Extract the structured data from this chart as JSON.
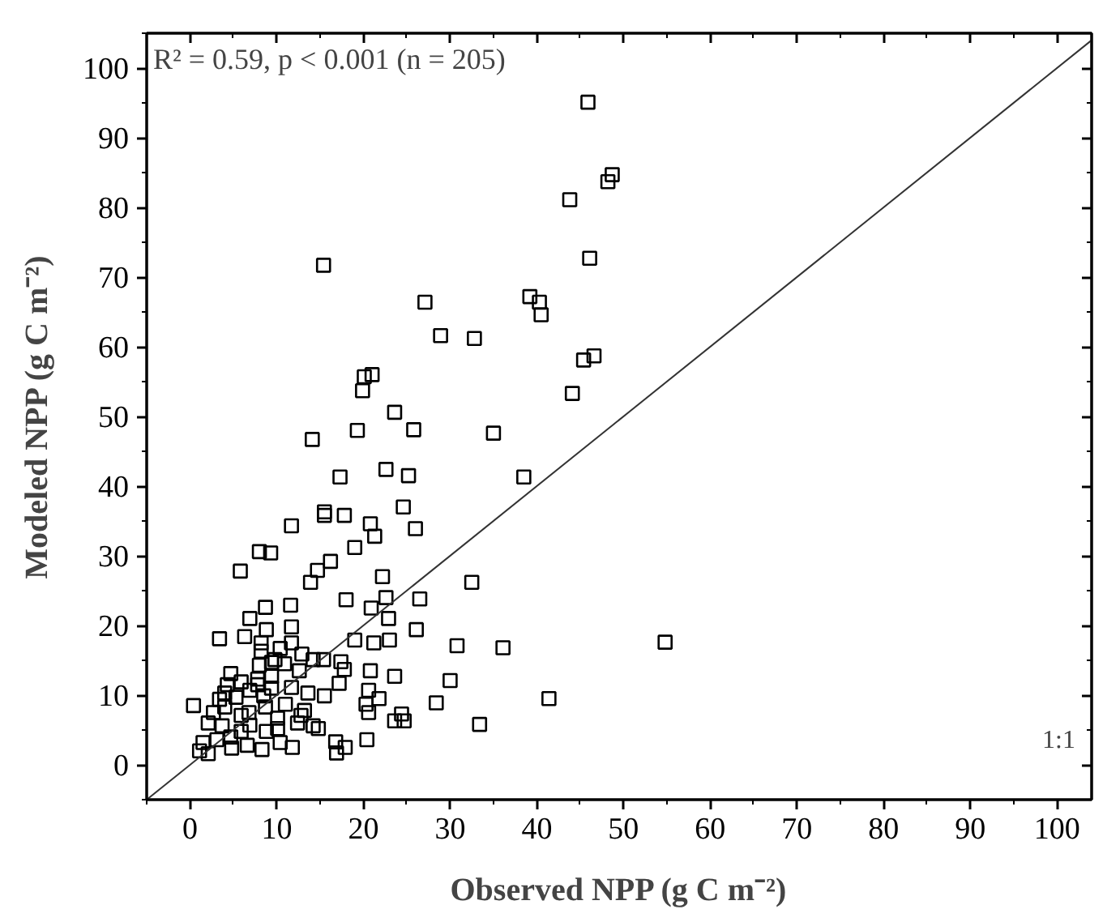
{
  "chart_data": {
    "type": "scatter",
    "xlabel": "Observed NPP (g C m⁻²)",
    "ylabel": "Modeled NPP (g C m⁻²)",
    "xlim": [
      -5,
      104
    ],
    "ylim": [
      -5,
      105
    ],
    "xticks": [
      0,
      10,
      20,
      30,
      40,
      50,
      60,
      70,
      80,
      90,
      100
    ],
    "yticks": [
      0,
      10,
      20,
      30,
      40,
      50,
      60,
      70,
      80,
      90,
      100
    ],
    "grid": false,
    "annotations": [
      "R² = 0.59, p < 0.001 (n = 205)",
      "1:1"
    ],
    "series": [
      {
        "color": "#000000",
        "marker": "square",
        "x": [
          45.9,
          48.7,
          48.2,
          43.8,
          46.1,
          15.4,
          27.1,
          39.2,
          40.3,
          40.5,
          28.9,
          32.8,
          46.6,
          45.4,
          44.1,
          21.0,
          20.1,
          19.9,
          23.6,
          19.3,
          25.8,
          14.1,
          35.0,
          22.6,
          25.2,
          17.3,
          38.5,
          24.6,
          15.5,
          15.5,
          17.8,
          20.8,
          21.3,
          26.0,
          11.7,
          19.0,
          8.0,
          9.3,
          16.2,
          5.8,
          14.7,
          13.9,
          22.2,
          32.5,
          18.0,
          26.5,
          22.6,
          20.9,
          22.9,
          11.6,
          8.7,
          6.9,
          11.7,
          8.8,
          26.1,
          3.4,
          6.3,
          19.0,
          21.2,
          23.0,
          30.8,
          36.1,
          11.7,
          10.4,
          14.2,
          12.9,
          17.4,
          17.8,
          20.8,
          23.6,
          30.0,
          4.7,
          8.0,
          9.4,
          10.9,
          12.6,
          7.8,
          5.3,
          4.0,
          6.9,
          9.4,
          11.7,
          15.5,
          17.2,
          20.6,
          0.4,
          3.4,
          28.4,
          41.4,
          20.3,
          20.6,
          21.8,
          23.6,
          24.7,
          24.4,
          33.4,
          10.1,
          12.4,
          14.2,
          13.2,
          6.8,
          8.7,
          2.7,
          2.1,
          3.7,
          20.4,
          16.8,
          16.9,
          17.9,
          1.5,
          1.1,
          2.1,
          3.1,
          4.7,
          6.6,
          8.3,
          10.4,
          11.8,
          8.8,
          5.9,
          4.8,
          6.9,
          10.1,
          14.8,
          12.8,
          9.4,
          8.2,
          8.2,
          9.8,
          15.4,
          5.9,
          4.0,
          4.3,
          11.0,
          13.6,
          8.5,
          5.9,
          7.8,
          54.8
        ],
        "values": [
          95.1,
          84.7,
          83.7,
          81.1,
          72.7,
          71.7,
          66.4,
          67.2,
          66.4,
          64.6,
          61.6,
          61.2,
          58.7,
          58.1,
          53.3,
          56.0,
          55.7,
          53.7,
          50.6,
          48.0,
          48.1,
          46.7,
          47.6,
          42.4,
          41.5,
          41.3,
          41.3,
          37.0,
          36.3,
          35.8,
          35.8,
          34.6,
          32.8,
          33.9,
          34.3,
          31.2,
          30.6,
          30.4,
          29.2,
          27.8,
          27.9,
          26.2,
          27.0,
          26.2,
          23.7,
          23.8,
          24.0,
          22.5,
          21.0,
          22.9,
          22.6,
          21.0,
          19.8,
          19.4,
          19.4,
          18.1,
          18.4,
          17.9,
          17.5,
          17.9,
          17.1,
          16.8,
          17.5,
          16.7,
          15.1,
          15.9,
          14.8,
          13.7,
          13.5,
          12.7,
          12.1,
          13.1,
          14.3,
          14.7,
          14.5,
          13.5,
          12.3,
          9.7,
          10.3,
          10.7,
          11.0,
          11.1,
          9.9,
          11.7,
          10.7,
          8.5,
          9.4,
          8.9,
          9.5,
          8.7,
          7.5,
          9.5,
          6.3,
          6.3,
          7.3,
          5.8,
          6.7,
          6.0,
          5.6,
          7.8,
          7.5,
          8.3,
          7.5,
          6.0,
          5.6,
          3.6,
          3.3,
          1.7,
          2.5,
          3.2,
          2.0,
          1.6,
          3.6,
          4.0,
          2.8,
          2.2,
          3.2,
          2.5,
          4.8,
          4.8,
          2.4,
          5.7,
          5.2,
          5.2,
          7.1,
          12.7,
          16.3,
          17.5,
          15.1,
          15.1,
          11.9,
          8.3,
          11.5,
          8.7,
          10.3,
          9.9,
          7.1,
          11.5,
          17.6
        ]
      },
      {
        "type": "line",
        "color": "#333333",
        "line_style": "solid",
        "marker": "none",
        "x": [
          -5,
          104
        ],
        "values": [
          -5,
          104
        ]
      }
    ]
  }
}
